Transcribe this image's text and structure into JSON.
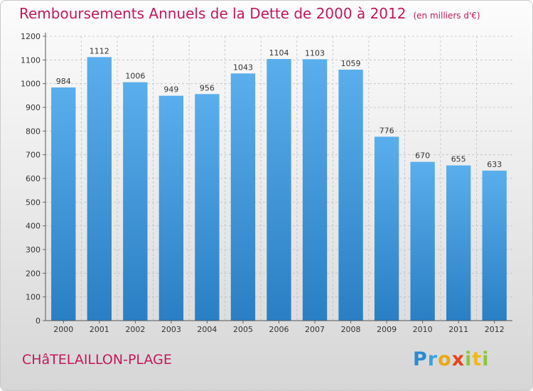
{
  "title": "Remboursements Annuels de la Dette de 2000 à 2012",
  "unit": "(en milliers d'€)",
  "city": "CHâTELAILLON-PLAGE",
  "brand": {
    "letters": [
      {
        "ch": "P",
        "color": "#2a8ad4"
      },
      {
        "ch": "r",
        "color": "#37a3de"
      },
      {
        "ch": "o",
        "color": "#e8a81a"
      },
      {
        "ch": "x",
        "color": "#e6431f"
      },
      {
        "ch": "i",
        "color": "#8cc63e"
      },
      {
        "ch": "t",
        "color": "#f1b81c"
      },
      {
        "ch": "i",
        "color": "#8cc63e"
      }
    ]
  },
  "colors": {
    "bar_top": "#5aaeec",
    "bar_bottom": "#2a7fc4",
    "title": "#c2185b",
    "grid": "#bfbfbf"
  },
  "chart_data": {
    "type": "bar",
    "title": "Remboursements Annuels de la Dette de 2000 à 2012",
    "xlabel": "",
    "ylabel": "en milliers d'€",
    "categories": [
      "2000",
      "2001",
      "2002",
      "2003",
      "2004",
      "2005",
      "2006",
      "2007",
      "2008",
      "2009",
      "2010",
      "2011",
      "2012"
    ],
    "values": [
      984,
      1112,
      1006,
      949,
      956,
      1043,
      1104,
      1103,
      1059,
      776,
      670,
      655,
      633
    ],
    "ylim": [
      0,
      1200
    ],
    "yticks": [
      0,
      100,
      200,
      300,
      400,
      500,
      600,
      700,
      800,
      900,
      1000,
      1100,
      1200
    ],
    "grid": true
  }
}
